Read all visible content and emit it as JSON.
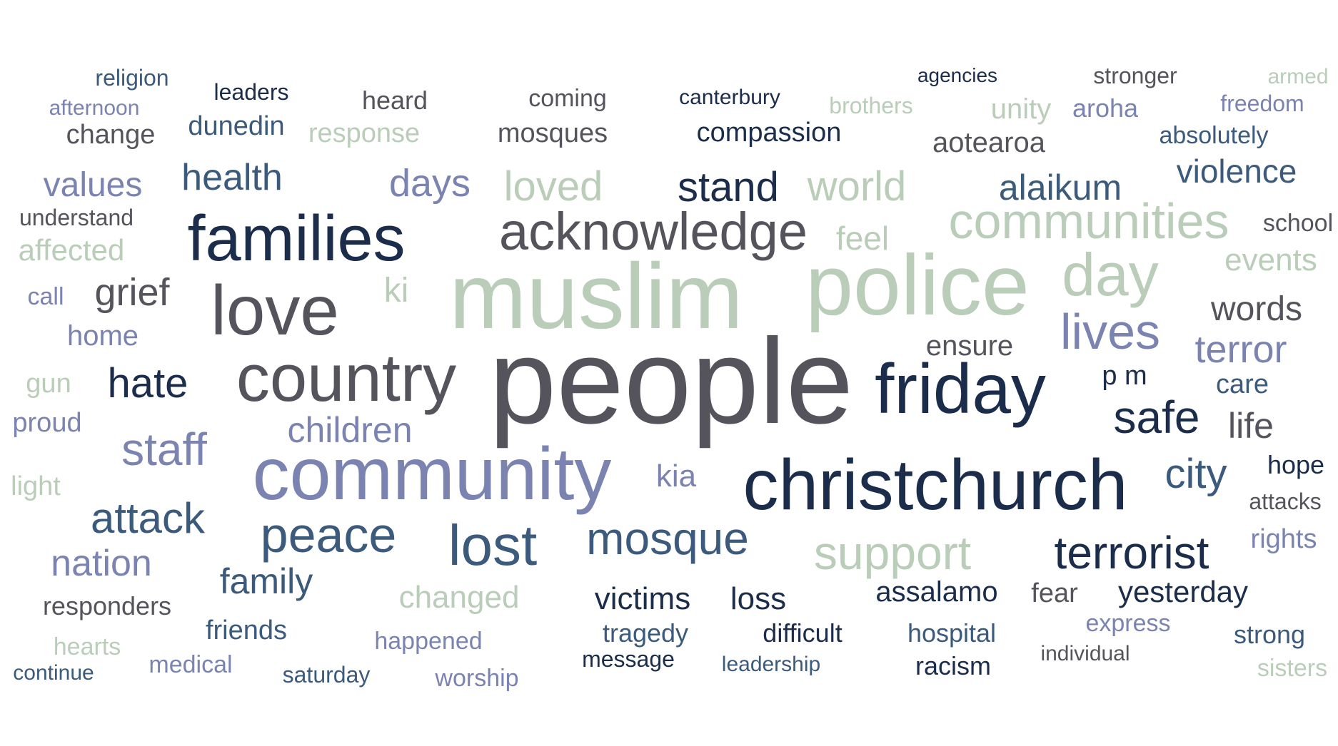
{
  "palette": {
    "navy": "#1b2d4a",
    "blue": "#3b5a7c",
    "gray": "#55545d",
    "periwinkle": "#7b83b0",
    "sage": "#b9cdb9"
  },
  "words": [
    {
      "text": "people",
      "weight": 100,
      "color": "gray"
    },
    {
      "text": "muslim",
      "weight": 90,
      "color": "sage"
    },
    {
      "text": "police",
      "weight": 84,
      "color": "sage"
    },
    {
      "text": "community",
      "weight": 74,
      "color": "periwinkle"
    },
    {
      "text": "christchurch",
      "weight": 72,
      "color": "navy"
    },
    {
      "text": "friday",
      "weight": 70,
      "color": "navy"
    },
    {
      "text": "country",
      "weight": 66,
      "color": "gray"
    },
    {
      "text": "love",
      "weight": 68,
      "color": "gray"
    },
    {
      "text": "families",
      "weight": 64,
      "color": "navy"
    },
    {
      "text": "acknowledge",
      "weight": 56,
      "color": "gray"
    },
    {
      "text": "communities",
      "weight": 52,
      "color": "sage"
    },
    {
      "text": "day",
      "weight": 58,
      "color": "sage"
    },
    {
      "text": "lost",
      "weight": 55,
      "color": "blue"
    },
    {
      "text": "peace",
      "weight": 50,
      "color": "blue"
    },
    {
      "text": "lives",
      "weight": 48,
      "color": "periwinkle"
    },
    {
      "text": "safe",
      "weight": 46,
      "color": "navy"
    },
    {
      "text": "terrorist",
      "weight": 46,
      "color": "navy"
    },
    {
      "text": "mosque",
      "weight": 46,
      "color": "blue"
    },
    {
      "text": "support",
      "weight": 46,
      "color": "sage"
    },
    {
      "text": "staff",
      "weight": 44,
      "color": "periwinkle"
    },
    {
      "text": "city",
      "weight": 42,
      "color": "blue"
    },
    {
      "text": "attack",
      "weight": 42,
      "color": "blue"
    },
    {
      "text": "hate",
      "weight": 40,
      "color": "navy"
    },
    {
      "text": "world",
      "weight": 40,
      "color": "sage"
    },
    {
      "text": "stand",
      "weight": 40,
      "color": "navy"
    },
    {
      "text": "loved",
      "weight": 40,
      "color": "sage"
    },
    {
      "text": "grief",
      "weight": 38,
      "color": "gray"
    },
    {
      "text": "family",
      "weight": 36,
      "color": "blue"
    },
    {
      "text": "nation",
      "weight": 36,
      "color": "periwinkle"
    },
    {
      "text": "terror",
      "weight": 36,
      "color": "periwinkle"
    },
    {
      "text": "alaikum",
      "weight": 36,
      "color": "blue"
    },
    {
      "text": "days",
      "weight": 36,
      "color": "periwinkle"
    },
    {
      "text": "health",
      "weight": 36,
      "color": "blue"
    },
    {
      "text": "values",
      "weight": 34,
      "color": "periwinkle"
    },
    {
      "text": "violence",
      "weight": 34,
      "color": "blue"
    },
    {
      "text": "children",
      "weight": 34,
      "color": "periwinkle"
    },
    {
      "text": "words",
      "weight": 34,
      "color": "gray"
    },
    {
      "text": "victims",
      "weight": 32,
      "color": "navy"
    },
    {
      "text": "loss",
      "weight": 32,
      "color": "navy"
    },
    {
      "text": "yesterday",
      "weight": 30,
      "color": "navy"
    },
    {
      "text": "assalamo",
      "weight": 30,
      "color": "navy"
    },
    {
      "text": "changed",
      "weight": 30,
      "color": "sage"
    },
    {
      "text": "feel",
      "weight": 30,
      "color": "sage"
    },
    {
      "text": "ki",
      "weight": 30,
      "color": "sage"
    },
    {
      "text": "kia",
      "weight": 30,
      "color": "periwinkle"
    },
    {
      "text": "life",
      "weight": 30,
      "color": "gray"
    },
    {
      "text": "events",
      "weight": 30,
      "color": "sage"
    },
    {
      "text": "ensure",
      "weight": 28,
      "color": "gray"
    },
    {
      "text": "affected",
      "weight": 28,
      "color": "sage"
    },
    {
      "text": "home",
      "weight": 28,
      "color": "periwinkle"
    },
    {
      "text": "p m",
      "weight": 26,
      "color": "navy"
    },
    {
      "text": "aotearoa",
      "weight": 28,
      "color": "gray"
    },
    {
      "text": "compassion",
      "weight": 28,
      "color": "navy"
    },
    {
      "text": "response",
      "weight": 28,
      "color": "sage"
    },
    {
      "text": "mosques",
      "weight": 28,
      "color": "gray"
    },
    {
      "text": "change",
      "weight": 28,
      "color": "gray"
    },
    {
      "text": "dunedin",
      "weight": 28,
      "color": "blue"
    },
    {
      "text": "unity",
      "weight": 28,
      "color": "sage"
    },
    {
      "text": "aroha",
      "weight": 26,
      "color": "periwinkle"
    },
    {
      "text": "absolutely",
      "weight": 26,
      "color": "blue"
    },
    {
      "text": "hope",
      "weight": 26,
      "color": "navy"
    },
    {
      "text": "attacks",
      "weight": 24,
      "color": "gray"
    },
    {
      "text": "rights",
      "weight": 28,
      "color": "periwinkle"
    },
    {
      "text": "care",
      "weight": 28,
      "color": "blue"
    },
    {
      "text": "school",
      "weight": 26,
      "color": "gray"
    },
    {
      "text": "gun",
      "weight": 28,
      "color": "sage"
    },
    {
      "text": "proud",
      "weight": 28,
      "color": "periwinkle"
    },
    {
      "text": "light",
      "weight": 28,
      "color": "sage"
    },
    {
      "text": "call",
      "weight": 26,
      "color": "periwinkle"
    },
    {
      "text": "understand",
      "weight": 24,
      "color": "gray"
    },
    {
      "text": "responders",
      "weight": 28,
      "color": "gray"
    },
    {
      "text": "friends",
      "weight": 28,
      "color": "blue"
    },
    {
      "text": "hearts",
      "weight": 26,
      "color": "sage"
    },
    {
      "text": "medical",
      "weight": 26,
      "color": "periwinkle"
    },
    {
      "text": "continue",
      "weight": 24,
      "color": "blue"
    },
    {
      "text": "saturday",
      "weight": 26,
      "color": "blue"
    },
    {
      "text": "worship",
      "weight": 26,
      "color": "periwinkle"
    },
    {
      "text": "happened",
      "weight": 26,
      "color": "periwinkle"
    },
    {
      "text": "tragedy",
      "weight": 28,
      "color": "blue"
    },
    {
      "text": "message",
      "weight": 24,
      "color": "navy"
    },
    {
      "text": "difficult",
      "weight": 28,
      "color": "navy"
    },
    {
      "text": "leadership",
      "weight": 24,
      "color": "blue"
    },
    {
      "text": "hospital",
      "weight": 28,
      "color": "blue"
    },
    {
      "text": "racism",
      "weight": 28,
      "color": "navy"
    },
    {
      "text": "fear",
      "weight": 28,
      "color": "gray"
    },
    {
      "text": "express",
      "weight": 26,
      "color": "periwinkle"
    },
    {
      "text": "individual",
      "weight": 24,
      "color": "gray"
    },
    {
      "text": "strong",
      "weight": 28,
      "color": "blue"
    },
    {
      "text": "sisters",
      "weight": 26,
      "color": "sage"
    },
    {
      "text": "religion",
      "weight": 26,
      "color": "blue"
    },
    {
      "text": "leaders",
      "weight": 26,
      "color": "navy"
    },
    {
      "text": "heard",
      "weight": 28,
      "color": "gray"
    },
    {
      "text": "coming",
      "weight": 26,
      "color": "gray"
    },
    {
      "text": "canterbury",
      "weight": 24,
      "color": "navy"
    },
    {
      "text": "brothers",
      "weight": 26,
      "color": "sage"
    },
    {
      "text": "agencies",
      "weight": 24,
      "color": "navy"
    },
    {
      "text": "stronger",
      "weight": 26,
      "color": "gray"
    },
    {
      "text": "armed",
      "weight": 24,
      "color": "sage"
    },
    {
      "text": "freedom",
      "weight": 26,
      "color": "periwinkle"
    },
    {
      "text": "afternoon",
      "weight": 24,
      "color": "periwinkle"
    }
  ]
}
